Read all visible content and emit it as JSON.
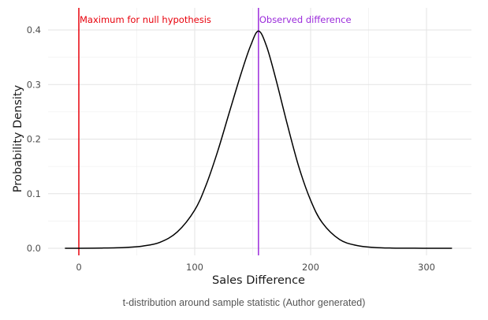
{
  "chart_data": {
    "type": "line",
    "xlabel": "Sales Difference",
    "ylabel": "Probability Density",
    "xlim": [
      -12,
      322
    ],
    "ylim": [
      0,
      0.42
    ],
    "x_ticks": [
      0,
      100,
      200,
      300
    ],
    "y_ticks": [
      0.0,
      0.1,
      0.2,
      0.3,
      0.4
    ],
    "x_tick_labels": [
      "0",
      "100",
      "200",
      "300"
    ],
    "y_tick_labels": [
      "0.0",
      "0.1",
      "0.2",
      "0.3",
      "0.4"
    ],
    "grid": true,
    "series": [
      {
        "name": "",
        "color": "#000000",
        "x": [
          -12,
          0,
          20,
          40,
          55,
          70,
          85,
          100,
          110,
          120,
          130,
          140,
          148,
          155,
          162,
          170,
          180,
          190,
          200,
          210,
          225,
          240,
          255,
          270,
          290,
          310,
          322
        ],
        "y": [
          0.0,
          0.0,
          0.0004,
          0.0015,
          0.004,
          0.011,
          0.03,
          0.07,
          0.117,
          0.179,
          0.25,
          0.32,
          0.37,
          0.398,
          0.37,
          0.31,
          0.226,
          0.148,
          0.088,
          0.047,
          0.016,
          0.005,
          0.0015,
          0.0004,
          0.0001,
          0.0,
          0.0
        ]
      }
    ],
    "reference_lines": [
      {
        "x": 0,
        "label": "Maximum for null hypothesis",
        "color": "#e8000b"
      },
      {
        "x": 155,
        "label": "Observed difference",
        "color": "#9b2bdb"
      }
    ]
  },
  "caption": "t-distribution around sample statistic (Author generated)"
}
